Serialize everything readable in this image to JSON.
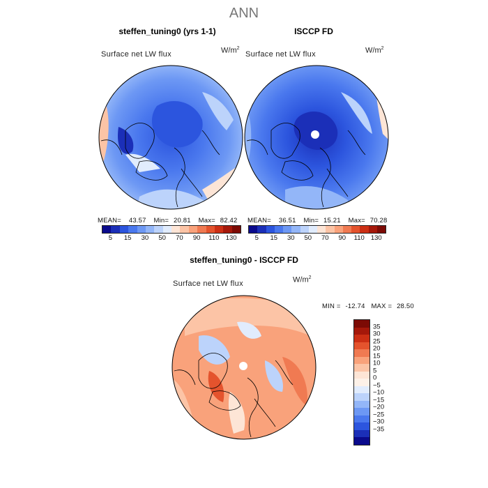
{
  "season": "ANN",
  "chart_data": [
    {
      "type": "heatmap",
      "projection": "polar stereographic (north)",
      "title": "steffen_tuning0 (yrs 1-1)",
      "variable": "Surface net LW flux",
      "units": "W/m",
      "units_exp": "2",
      "stats": {
        "mean_label": "MEAN=",
        "mean": "43.57",
        "min_label": "Min=",
        "min": "20.81",
        "max_label": "Max=",
        "max": "82.42"
      },
      "colorbar": {
        "ticks": [
          "5",
          "15",
          "30",
          "50",
          "70",
          "90",
          "110",
          "130"
        ],
        "colors": [
          "#0a0a8c",
          "#1b2fb8",
          "#2c55de",
          "#4a78ee",
          "#6d98f4",
          "#93b6f8",
          "#bcd3fb",
          "#e1ecfd",
          "#fde5d6",
          "#fcc4a6",
          "#f9a27b",
          "#f07a52",
          "#e4532d",
          "#cc2f14",
          "#a5180a",
          "#7c0b05"
        ]
      }
    },
    {
      "type": "heatmap",
      "projection": "polar stereographic (north)",
      "title": "ISCCP FD",
      "variable": "Surface net LW flux",
      "units": "W/m",
      "units_exp": "2",
      "stats": {
        "mean_label": "MEAN=",
        "mean": "36.51",
        "min_label": "Min=",
        "min": "15.21",
        "max_label": "Max=",
        "max": "70.28"
      },
      "colorbar": {
        "ticks": [
          "5",
          "15",
          "30",
          "50",
          "70",
          "90",
          "110",
          "130"
        ],
        "colors": [
          "#0a0a8c",
          "#1b2fb8",
          "#2c55de",
          "#4a78ee",
          "#6d98f4",
          "#93b6f8",
          "#bcd3fb",
          "#e1ecfd",
          "#fde5d6",
          "#fcc4a6",
          "#f9a27b",
          "#f07a52",
          "#e4532d",
          "#cc2f14",
          "#a5180a",
          "#7c0b05"
        ]
      }
    },
    {
      "type": "heatmap",
      "projection": "polar stereographic (north)",
      "title": "steffen_tuning0 - ISCCP FD",
      "variable": "Surface net LW flux",
      "units": "W/m",
      "units_exp": "2",
      "stats": {
        "min_label": "MIN =",
        "min": "-12.74",
        "max_label": "MAX =",
        "max": "28.50"
      },
      "colorbar": {
        "ticks": [
          "35",
          "30",
          "25",
          "20",
          "15",
          "10",
          "5",
          "0",
          "−5",
          "−10",
          "−15",
          "−20",
          "−25",
          "−30",
          "−35"
        ],
        "colors": [
          "#7c0b05",
          "#a5180a",
          "#cc2f14",
          "#e4532d",
          "#f07a52",
          "#f9a27b",
          "#fcc4a6",
          "#fde5d6",
          "#fdf1e8",
          "#e1ecfd",
          "#bcd3fb",
          "#93b6f8",
          "#6d98f4",
          "#4a78ee",
          "#2c55de",
          "#1b2fb8",
          "#0a0a8c"
        ]
      }
    }
  ]
}
